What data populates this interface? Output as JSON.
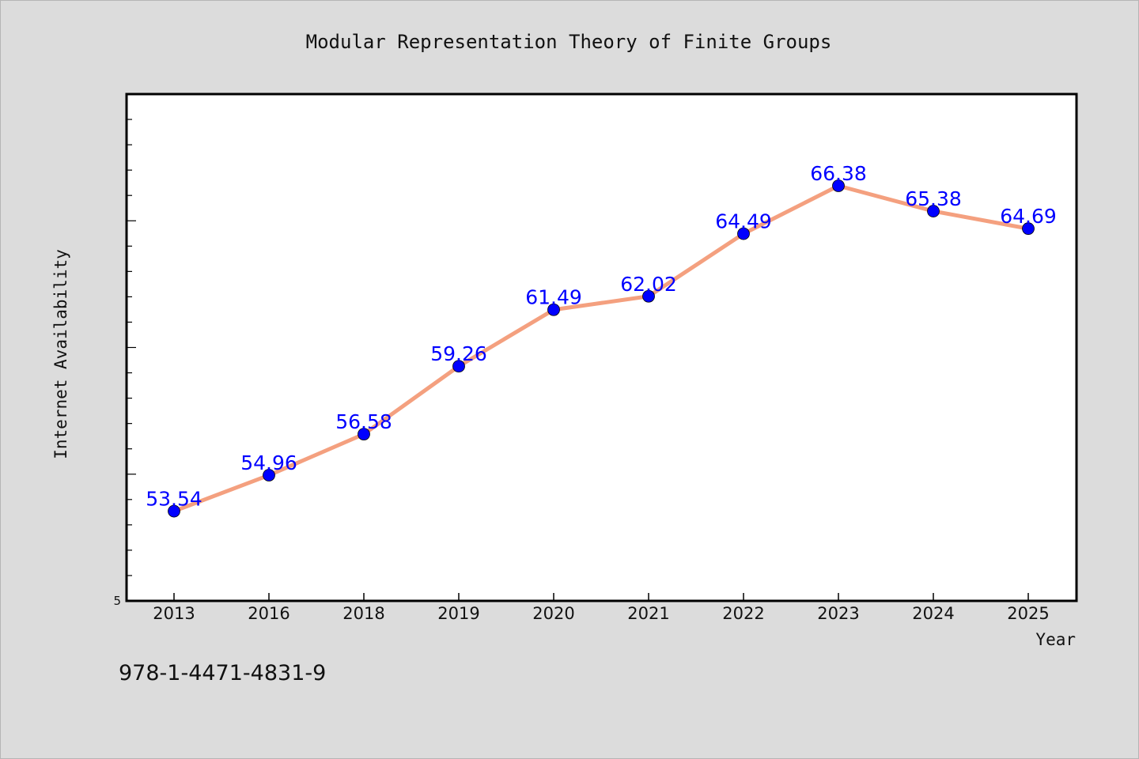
{
  "chart_data": {
    "type": "line",
    "title": "Modular Representation Theory of Finite Groups",
    "xlabel": "Year",
    "ylabel": "Internet Availability",
    "categories": [
      "2013",
      "2016",
      "2018",
      "2019",
      "2020",
      "2021",
      "2022",
      "2023",
      "2024",
      "2025"
    ],
    "series": [
      {
        "values": [
          53.54,
          54.96,
          56.58,
          59.26,
          61.49,
          62.02,
          64.49,
          66.38,
          65.38,
          64.69
        ]
      }
    ],
    "data_labels": [
      "53.54",
      "54.96",
      "56.58",
      "59.26",
      "61.49",
      "62.02",
      "64.49",
      "66.38",
      "65.38",
      "64.69"
    ],
    "ylim": [
      50.0,
      70.0
    ],
    "y_tick_labels": [
      "5"
    ],
    "grid": false,
    "line_color": "#f4a07f",
    "marker_color": "#0000ff",
    "label_color": "#0000ff"
  },
  "footer": {
    "isbn": "978-1-4471-4831-9"
  }
}
